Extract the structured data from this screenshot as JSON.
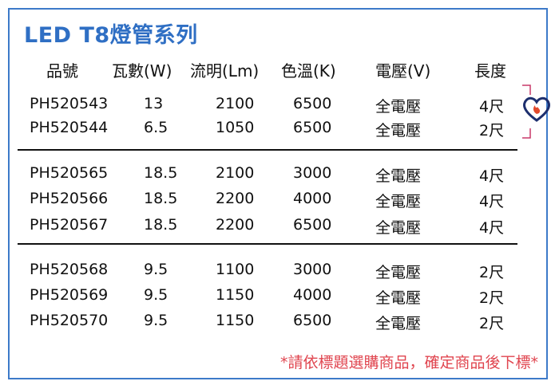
{
  "title": "LED T8燈管系列",
  "headers": [
    "品號",
    "瓦數(W)",
    "流明(Lm)",
    "色溫(K)",
    "電壓(V)",
    "長度"
  ],
  "groups": [
    [
      [
        "PH520543",
        "13",
        "2100",
        "6500",
        "全電壓",
        "4尺"
      ],
      [
        "PH520544",
        "6.5",
        "1050",
        "6500",
        "全電壓",
        "2尺"
      ]
    ],
    [
      [
        "PH520565",
        "18.5",
        "2100",
        "3000",
        "全電壓",
        "4尺"
      ],
      [
        "PH520566",
        "18.5",
        "2200",
        "4000",
        "全電壓",
        "4尺"
      ],
      [
        "PH520567",
        "18.5",
        "2200",
        "6500",
        "全電壓",
        "4尺"
      ]
    ],
    [
      [
        "PH520568",
        "9.5",
        "1100",
        "3000",
        "全電壓",
        "2尺"
      ],
      [
        "PH520569",
        "9.5",
        "1150",
        "4000",
        "全電壓",
        "2尺"
      ],
      [
        "PH520570",
        "9.5",
        "1150",
        "6500",
        "全電壓",
        "2尺"
      ]
    ]
  ],
  "note": "*請依標題選購商品，確定商品後下標*",
  "colors": {
    "title": "#2f6fc4",
    "border": "#3d7ac9",
    "note": "#e0454f"
  },
  "logo_icon": "heart-flame-plug-icon"
}
